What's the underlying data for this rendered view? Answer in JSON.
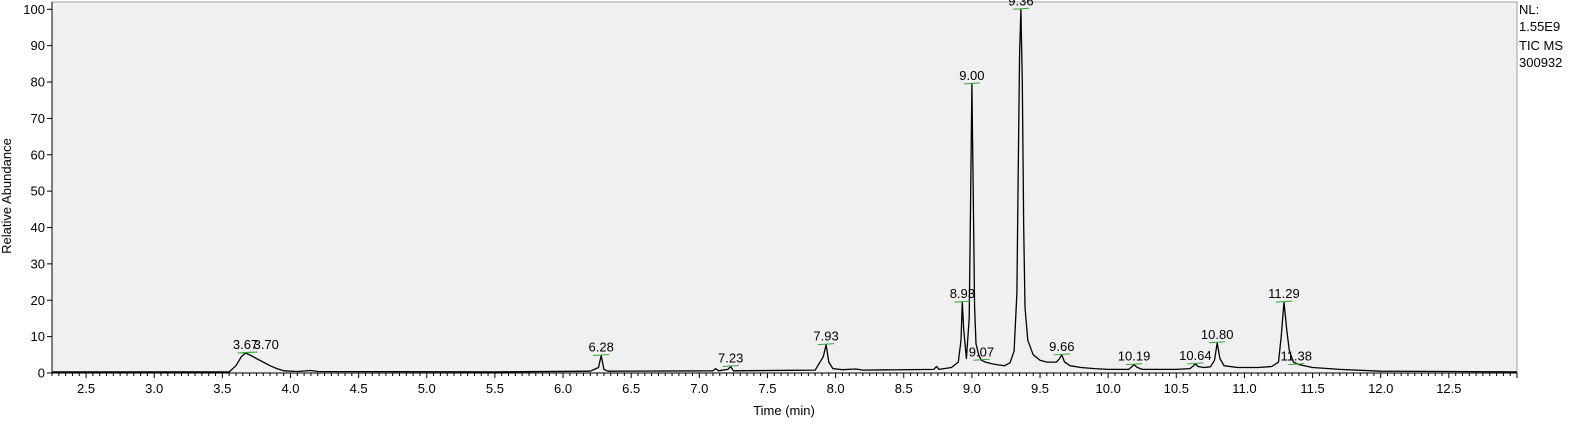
{
  "header_info": {
    "nl_label": "NL:",
    "nl_value": "1.55E9",
    "trace_type": "TIC  MS",
    "sample_id": "300932"
  },
  "chart_data": {
    "type": "line",
    "title": "",
    "xlabel": "Time (min)",
    "ylabel": "Relative Abundance",
    "xlim": [
      2.25,
      13.0
    ],
    "ylim": [
      0,
      102
    ],
    "x_ticks": [
      2.5,
      3.0,
      3.5,
      4.0,
      4.5,
      5.0,
      5.5,
      6.0,
      6.5,
      7.0,
      7.5,
      8.0,
      8.5,
      9.0,
      9.5,
      10.0,
      10.5,
      11.0,
      11.5,
      12.0,
      12.5
    ],
    "x_tick_labels": [
      "2.5",
      "3.0",
      "3.5",
      "4.0",
      "4.5",
      "5.0",
      "5.5",
      "6.0",
      "6.5",
      "7.0",
      "7.5",
      "8.0",
      "8.5",
      "9.0",
      "9.5",
      "10.0",
      "10.5",
      "11.0",
      "11.5",
      "12.0",
      "12.5"
    ],
    "y_ticks": [
      0,
      10,
      20,
      30,
      40,
      50,
      60,
      70,
      80,
      90,
      100
    ],
    "y_tick_labels": [
      "0",
      "10",
      "20",
      "30",
      "40",
      "50",
      "60",
      "70",
      "80",
      "90",
      "100"
    ],
    "grid": false,
    "background_color": "#f0f0f0",
    "line_color": "#000000",
    "baseline_marker_color": "#2eaa2e",
    "peak_labels": [
      {
        "x": 3.67,
        "y": 5.5,
        "text": "3.67"
      },
      {
        "x": 3.7,
        "y": 5.5,
        "text": "3.70"
      },
      {
        "x": 6.28,
        "y": 4.8,
        "text": "6.28"
      },
      {
        "x": 7.23,
        "y": 1.8,
        "text": "7.23"
      },
      {
        "x": 7.93,
        "y": 7.8,
        "text": "7.93"
      },
      {
        "x": 8.93,
        "y": 19.5,
        "text": "8.93"
      },
      {
        "x": 9.0,
        "y": 79.5,
        "text": "9.00"
      },
      {
        "x": 9.07,
        "y": 3.5,
        "text": "9.07"
      },
      {
        "x": 9.36,
        "y": 100,
        "text": "9.36"
      },
      {
        "x": 9.66,
        "y": 5.0,
        "text": "9.66"
      },
      {
        "x": 10.19,
        "y": 2.3,
        "text": "10.19"
      },
      {
        "x": 10.64,
        "y": 2.5,
        "text": "10.64"
      },
      {
        "x": 10.8,
        "y": 8.3,
        "text": "10.80"
      },
      {
        "x": 11.29,
        "y": 19.5,
        "text": "11.29"
      },
      {
        "x": 11.38,
        "y": 2.3,
        "text": "11.38"
      }
    ],
    "series": [
      {
        "x": [
          2.25,
          3.55,
          3.6,
          3.64,
          3.67,
          3.7,
          3.75,
          3.8,
          3.85,
          3.9,
          3.95,
          4.05,
          4.15,
          4.2,
          5.5,
          6.2,
          6.26,
          6.28,
          6.3,
          6.33,
          7.1,
          7.12,
          7.14,
          7.21,
          7.23,
          7.25,
          7.85,
          7.91,
          7.93,
          7.95,
          7.98,
          8.05,
          8.15,
          8.2,
          8.72,
          8.74,
          8.76,
          8.85,
          8.9,
          8.92,
          8.93,
          8.94,
          8.96,
          8.98,
          8.99,
          9.0,
          9.01,
          9.02,
          9.03,
          9.05,
          9.07,
          9.1,
          9.15,
          9.2,
          9.24,
          9.28,
          9.31,
          9.33,
          9.34,
          9.35,
          9.36,
          9.37,
          9.38,
          9.39,
          9.41,
          9.45,
          9.5,
          9.55,
          9.62,
          9.64,
          9.66,
          9.68,
          9.72,
          9.8,
          9.9,
          10.0,
          10.15,
          10.17,
          10.19,
          10.21,
          10.25,
          10.5,
          10.6,
          10.62,
          10.64,
          10.66,
          10.7,
          10.75,
          10.78,
          10.8,
          10.82,
          10.85,
          10.95,
          11.1,
          11.2,
          11.25,
          11.27,
          11.29,
          11.31,
          11.33,
          11.36,
          11.4,
          11.5,
          11.7,
          12.0,
          12.5,
          13.0
        ],
        "y": [
          0.3,
          0.3,
          2.0,
          4.5,
          5.5,
          5.0,
          4.0,
          3.0,
          2.0,
          1.2,
          0.6,
          0.4,
          0.7,
          0.4,
          0.3,
          0.5,
          1.5,
          4.8,
          1.0,
          0.5,
          0.6,
          1.2,
          0.6,
          1.0,
          1.8,
          0.6,
          0.8,
          4.5,
          7.8,
          3.0,
          1.2,
          0.9,
          1.1,
          0.8,
          1.0,
          1.8,
          1.0,
          1.5,
          3.0,
          9.0,
          19.5,
          12.0,
          4.0,
          15.0,
          45.0,
          79.5,
          50.0,
          18.0,
          8.0,
          5.0,
          3.5,
          3.0,
          2.5,
          2.2,
          2.0,
          2.8,
          6.0,
          22.0,
          55.0,
          88.0,
          100,
          80.0,
          40.0,
          18.0,
          9.0,
          5.0,
          3.5,
          3.0,
          3.0,
          3.8,
          5.0,
          3.0,
          2.0,
          1.5,
          1.2,
          1.0,
          1.0,
          1.6,
          2.3,
          1.6,
          1.0,
          1.0,
          1.2,
          1.8,
          2.5,
          1.8,
          1.5,
          1.7,
          3.5,
          8.3,
          4.0,
          2.0,
          1.5,
          1.5,
          1.8,
          3.0,
          10.0,
          19.5,
          12.0,
          6.0,
          3.0,
          2.3,
          1.5,
          1.0,
          0.5,
          0.4,
          0.3
        ]
      }
    ]
  }
}
